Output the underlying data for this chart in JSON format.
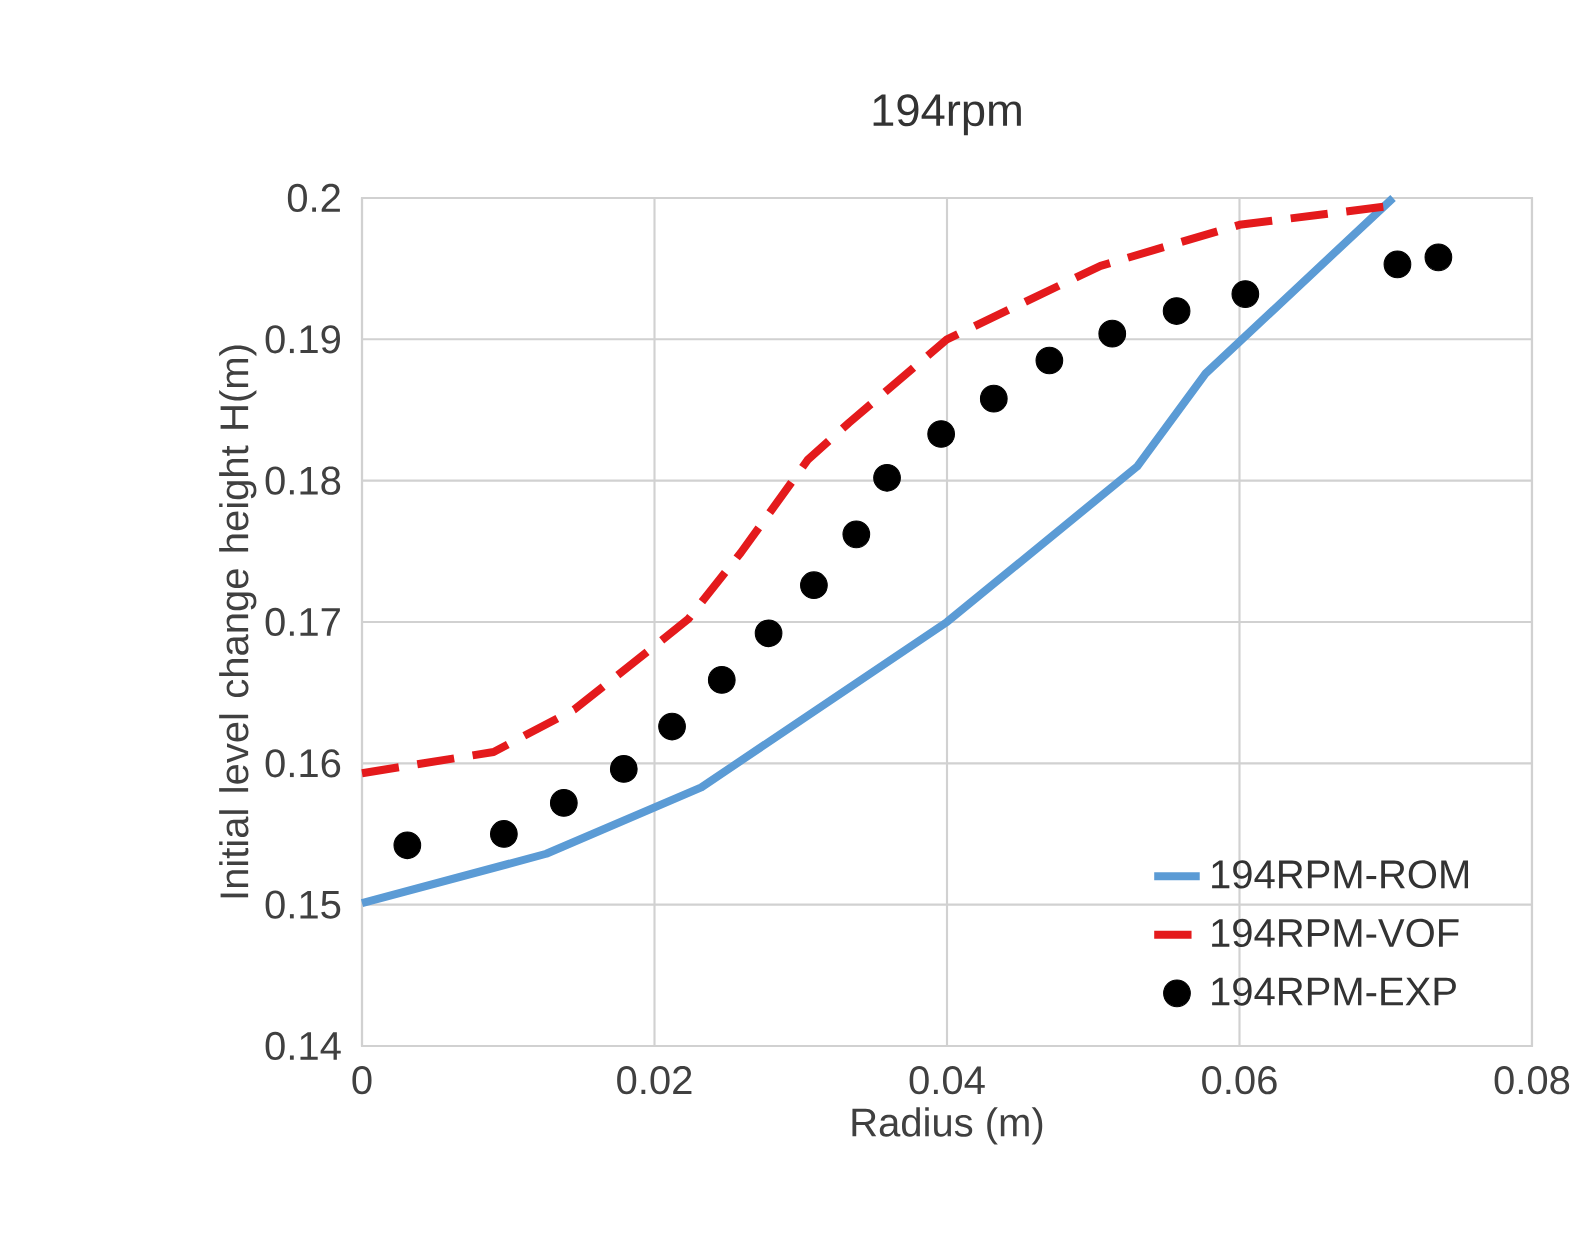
{
  "chart_data": {
    "type": "line",
    "title": "194rpm",
    "xlabel": "Radius (m)",
    "ylabel": "Initial level change height H(m)",
    "xlim": [
      0,
      0.08
    ],
    "xticks": [
      0,
      0.02,
      0.04,
      0.06,
      0.08
    ],
    "ylim": [
      0.14,
      0.2
    ],
    "yticks": [
      0.14,
      0.15,
      0.16,
      0.17,
      0.18,
      0.19,
      0.2
    ],
    "grid": true,
    "legend": "bottom right",
    "series": [
      {
        "name": "194RPM-ROM",
        "color": "#5b9bd5",
        "line_style": "solid",
        "x": [
          0,
          0.0126,
          0.0232,
          0.04,
          0.053,
          0.0577,
          0.0705
        ],
        "values": [
          0.1501,
          0.1536,
          0.1583,
          0.17,
          0.181,
          0.1876,
          0.2
        ]
      },
      {
        "name": "194RPM-VOF",
        "color": "#e41a1c",
        "line_style": "dashed",
        "x": [
          0,
          0.009,
          0.0145,
          0.02,
          0.0223,
          0.0259,
          0.0305,
          0.0333,
          0.04,
          0.0505,
          0.06,
          0.07
        ],
        "values": [
          0.1593,
          0.1608,
          0.1638,
          0.1683,
          0.1702,
          0.1749,
          0.1815,
          0.1841,
          0.19,
          0.1952,
          0.1981,
          0.1994
        ]
      },
      {
        "name": "194RPM-EXP",
        "type": "scatter",
        "color": "#000000",
        "marker": "circle",
        "x": [
          0.0031,
          0.0097,
          0.0138,
          0.0179,
          0.0212,
          0.0246,
          0.0278,
          0.0309,
          0.0338,
          0.0359,
          0.0396,
          0.0432,
          0.047,
          0.0513,
          0.0557,
          0.0604,
          0.0708,
          0.0736
        ],
        "values": [
          0.1542,
          0.155,
          0.1572,
          0.1596,
          0.1626,
          0.1659,
          0.1692,
          0.1726,
          0.1762,
          0.1802,
          0.1833,
          0.1858,
          0.1885,
          0.1904,
          0.192,
          0.1932,
          0.1953,
          0.1958
        ]
      }
    ]
  }
}
